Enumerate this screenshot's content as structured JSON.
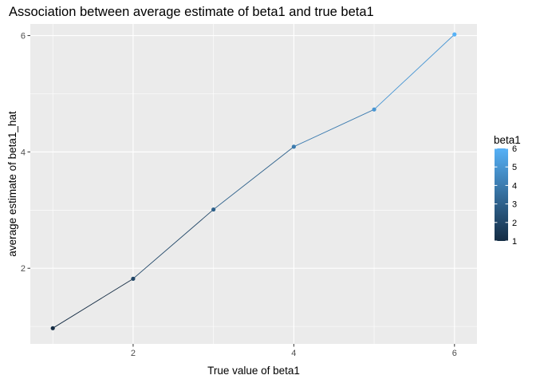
{
  "chart_data": {
    "type": "line",
    "title": "Association between average estimate of beta1 and true beta1",
    "xlabel": "True value of beta1",
    "ylabel": "average estimate of beta1_hat",
    "x": [
      1,
      2,
      3,
      4,
      5,
      6
    ],
    "y": [
      0.97,
      1.82,
      3.01,
      4.09,
      4.73,
      6.02
    ],
    "xlim": [
      0.72,
      6.28
    ],
    "ylim": [
      0.7,
      6.2
    ],
    "xticks": [
      "2",
      "4",
      "6"
    ],
    "yticks": [
      "2",
      "4",
      "6"
    ],
    "grid": true,
    "panel_background": "#ebebeb",
    "grid_color": "#ffffff",
    "color_scale": {
      "title": "beta1",
      "low": "#132b43",
      "high": "#56b1f7",
      "range": [
        1,
        6
      ],
      "breaks": [
        "1",
        "2",
        "3",
        "4",
        "5",
        "6"
      ]
    },
    "legend_position": "right"
  }
}
